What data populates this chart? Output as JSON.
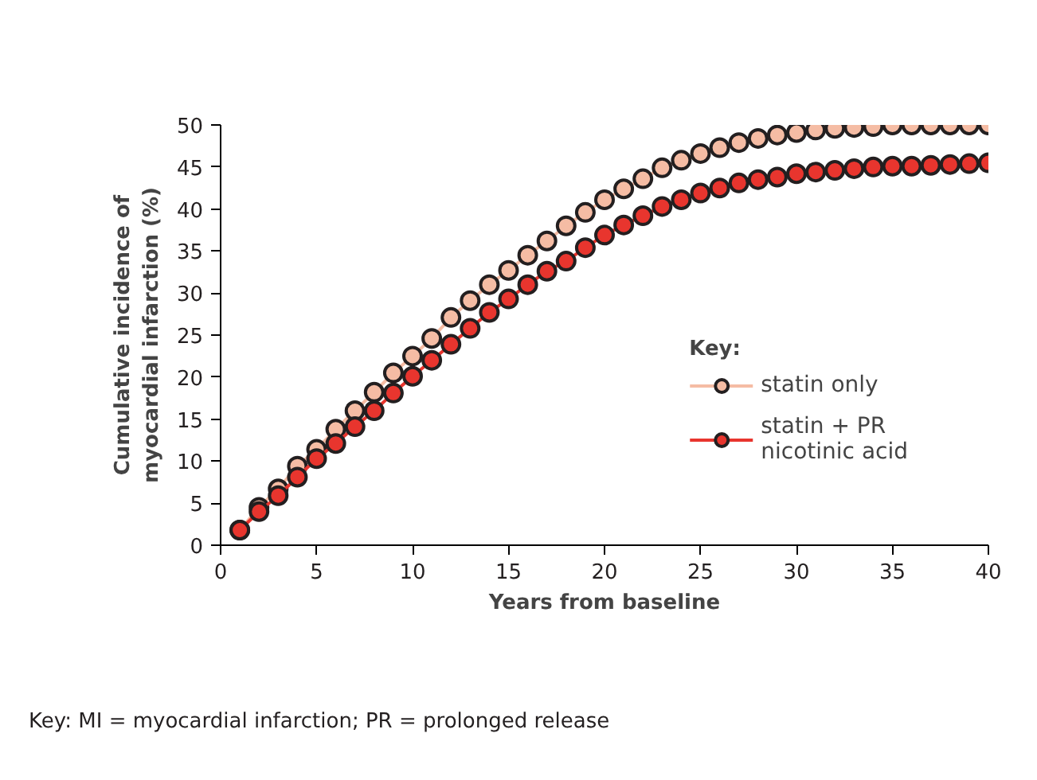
{
  "chart_data": {
    "type": "line",
    "xlabel": "Years from baseline",
    "ylabel": "Cumulative incidence of\nmyocardial infarction (%)",
    "legend_title": "Key:",
    "legend": "bottom right",
    "marker": "circle",
    "line_style": "solid",
    "grid": false,
    "x": [
      1,
      2,
      3,
      4,
      5,
      6,
      7,
      8,
      9,
      10,
      11,
      12,
      13,
      14,
      15,
      16,
      17,
      18,
      19,
      20,
      21,
      22,
      23,
      24,
      25,
      26,
      27,
      28,
      29,
      30,
      31,
      32,
      33,
      34,
      35,
      36,
      37,
      38,
      39,
      40
    ],
    "xlim": [
      0,
      40
    ],
    "xticks": [
      0,
      5,
      10,
      15,
      20,
      25,
      30,
      35,
      40
    ],
    "ylim": [
      0,
      50
    ],
    "yticks": [
      0,
      5,
      10,
      15,
      20,
      25,
      30,
      35,
      40,
      45,
      50
    ],
    "series": [
      {
        "name": "statin only",
        "color": "#f5bca4",
        "values": [
          1.8,
          4.5,
          6.7,
          9.4,
          11.4,
          13.8,
          16.0,
          18.2,
          20.5,
          22.5,
          24.6,
          27.1,
          29.1,
          31.0,
          32.7,
          34.5,
          36.2,
          38.0,
          39.6,
          41.1,
          42.4,
          43.6,
          44.9,
          45.8,
          46.6,
          47.3,
          47.9,
          48.4,
          48.8,
          49.1,
          49.4,
          49.6,
          49.7,
          49.8,
          50.0,
          50.0,
          50.0,
          50.0,
          50.0,
          50.0
        ]
      },
      {
        "name": "statin + PR\nnicotinic acid",
        "color": "#e8352e",
        "values": [
          1.8,
          4.0,
          5.9,
          8.1,
          10.3,
          12.1,
          14.1,
          16.0,
          18.1,
          20.1,
          22.0,
          23.9,
          25.8,
          27.7,
          29.3,
          31.0,
          32.6,
          33.8,
          35.4,
          36.9,
          38.1,
          39.2,
          40.3,
          41.1,
          41.9,
          42.5,
          43.1,
          43.5,
          43.8,
          44.2,
          44.4,
          44.6,
          44.8,
          45.0,
          45.1,
          45.1,
          45.2,
          45.3,
          45.4,
          45.5
        ]
      }
    ],
    "annotations": [
      "Key: MI = myocardial infarction; PR = prolonged release"
    ]
  }
}
